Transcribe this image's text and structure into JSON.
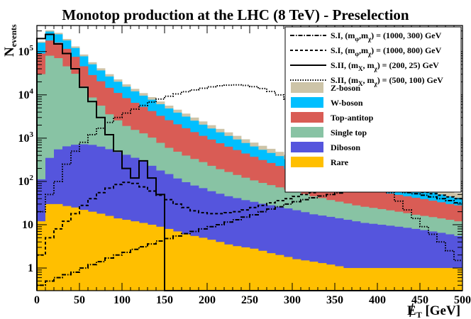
{
  "chart_data": {
    "type": "histogram-stacked-log",
    "title": "Monotop production at the LHC (8 TeV) - Preselection",
    "xlabel": "E_T [GeV]",
    "ylabel": "N_events",
    "xlim": [
      0,
      500
    ],
    "ylim": [
      0.3,
      400000
    ],
    "yscale": "log",
    "bin_width": 10,
    "x_ticks": [
      0,
      50,
      100,
      150,
      200,
      250,
      300,
      350,
      400,
      450,
      500
    ],
    "x_tick_labels": [
      "0",
      "50",
      "100",
      "150",
      "200",
      "250",
      "300",
      "350",
      "400",
      "450",
      "500"
    ],
    "y_tick_labels": [
      {
        "value": 1,
        "base": "1",
        "exp": ""
      },
      {
        "value": 10,
        "base": "10",
        "exp": ""
      },
      {
        "value": 100,
        "base": "10",
        "exp": "2"
      },
      {
        "value": 1000,
        "base": "10",
        "exp": "3"
      },
      {
        "value": 10000,
        "base": "10",
        "exp": "4"
      },
      {
        "value": 100000,
        "base": "10",
        "exp": "5"
      }
    ],
    "stacked_series": [
      {
        "name": "Rare",
        "color": "#ffbf00",
        "values": [
          12,
          30,
          30,
          27,
          25,
          22,
          20,
          18,
          16,
          14,
          13,
          12,
          11,
          10,
          9,
          8,
          7,
          6,
          5.5,
          5,
          4.5,
          4,
          3.5,
          3.2,
          3,
          2.8,
          2.5,
          2.2,
          2,
          1.8,
          1.6,
          1.5,
          1.4,
          1.3,
          1.2,
          1.1,
          1,
          1,
          1,
          1,
          1,
          1,
          1,
          1,
          1,
          1,
          1,
          1,
          1,
          1
        ]
      },
      {
        "name": "Diboson",
        "color": "#5555dd",
        "values": [
          100,
          320,
          520,
          620,
          680,
          700,
          680,
          620,
          540,
          460,
          400,
          340,
          280,
          220,
          170,
          140,
          110,
          90,
          75,
          65,
          55,
          48,
          42,
          38,
          34,
          31,
          28,
          26,
          24,
          22,
          20,
          18,
          16,
          15,
          14,
          13,
          12,
          11,
          10,
          9.5,
          9,
          8.5,
          8,
          7.5,
          7,
          6.5,
          6,
          5.5,
          5,
          4.5
        ]
      },
      {
        "name": "Single top",
        "color": "#88c3a4",
        "values": [
          30000,
          80000,
          70000,
          45000,
          30000,
          15000,
          8000,
          5000,
          3000,
          2100,
          1500,
          1200,
          1000,
          800,
          600,
          450,
          370,
          300,
          250,
          210,
          170,
          140,
          120,
          100,
          85,
          72,
          62,
          54,
          47,
          41,
          36,
          32,
          28,
          25,
          22,
          20,
          18,
          16,
          15,
          14,
          13,
          12,
          11,
          10,
          9,
          8.5,
          8,
          7.5,
          7,
          6.5
        ]
      },
      {
        "name": "Top-antitop",
        "color": "#d95c55",
        "values": [
          60000,
          100000,
          90000,
          70000,
          45000,
          30000,
          20000,
          15000,
          11000,
          8500,
          6500,
          5000,
          4000,
          3200,
          2500,
          2000,
          1600,
          1300,
          1050,
          850,
          700,
          570,
          470,
          390,
          320,
          265,
          220,
          185,
          155,
          130,
          110,
          95,
          82,
          72,
          63,
          56,
          50,
          45,
          41,
          37,
          34,
          31,
          29,
          27,
          25,
          23,
          21,
          19,
          17,
          16
        ]
      },
      {
        "name": "W-boson",
        "color": "#00bfff",
        "values": [
          70000,
          110000,
          90000,
          65000,
          45000,
          32000,
          22000,
          16000,
          12000,
          9000,
          7000,
          5500,
          4300,
          3500,
          2800,
          2250,
          1800,
          1450,
          1150,
          920,
          740,
          600,
          490,
          400,
          330,
          272,
          225,
          188,
          157,
          132,
          112,
          96,
          83,
          72,
          63,
          55,
          49,
          44,
          39,
          35,
          32,
          29,
          27,
          25,
          23,
          21,
          19,
          17,
          15,
          14
        ]
      },
      {
        "name": "Z-boson",
        "color": "#cdc4a8",
        "values": [
          10000,
          20000,
          20000,
          15000,
          11000,
          8000,
          6000,
          4500,
          3500,
          2700,
          2100,
          1700,
          1400,
          1150,
          950,
          790,
          660,
          550,
          460,
          385,
          325,
          275,
          235,
          200,
          170,
          147,
          128,
          112,
          98,
          86,
          76,
          67,
          60,
          54,
          49,
          44,
          40,
          36,
          33,
          30,
          27,
          25,
          23,
          21,
          19,
          17,
          15.5,
          14,
          13,
          12
        ]
      }
    ],
    "signal_series": [
      {
        "name": "S.I, (m_φ, m_χ) = (1000, 300) GeV",
        "legend_main": "S.I, (m",
        "legend_sub1": "φ",
        "legend_mid": ",m",
        "legend_sub2": "χ",
        "legend_end": ") = (1000, 300) GeV",
        "dash": "6,2,1.5,2",
        "values": [
          0.4,
          0.5,
          0.6,
          0.7,
          0.8,
          1,
          1.2,
          1.4,
          1.7,
          2,
          2.3,
          2.7,
          3.1,
          3.6,
          4.2,
          4.8,
          5.5,
          6.2,
          7,
          8,
          9,
          10,
          11.5,
          13,
          15,
          17,
          20,
          23,
          26,
          30,
          34,
          38,
          42,
          46,
          50,
          54,
          58,
          60,
          62,
          63,
          62,
          60,
          58,
          55,
          52,
          48,
          44,
          40,
          36,
          32
        ]
      },
      {
        "name": "S.I, (m_φ, m_χ) = (1000, 800) GeV",
        "legend_main": "S.I, (m",
        "legend_sub1": "φ",
        "legend_mid": ",m",
        "legend_sub2": "χ",
        "legend_end": ") = (1000, 800) GeV",
        "dash": "4,3",
        "values": [
          2,
          5,
          8,
          12,
          18,
          28,
          40,
          55,
          70,
          85,
          95,
          90,
          75,
          60,
          48,
          38,
          30,
          25,
          21,
          19,
          18,
          18,
          19,
          20,
          22,
          25,
          28,
          32,
          36,
          40,
          45,
          50,
          55,
          60,
          65,
          70,
          72,
          74,
          75,
          74,
          72,
          70,
          67,
          64,
          60,
          56,
          52,
          48,
          44,
          40
        ]
      },
      {
        "name": "S.II, (m_X, m_χ) = (200, 25) GeV",
        "legend_main": "S.II, (m",
        "legend_sub1": "X",
        "legend_mid": ", m",
        "legend_sub2": "χ",
        "legend_end": ") = (200, 25) GeV",
        "dash": "",
        "values": [
          200000,
          250000,
          150000,
          90000,
          40000,
          15000,
          7000,
          3000,
          1200,
          500,
          200,
          120,
          300,
          120,
          50,
          0.1,
          0.1,
          0.1,
          0.1,
          0.1,
          0.1,
          0.1,
          0.1,
          0.1,
          0.1,
          0.1,
          0.1,
          0.1,
          0.1,
          0.1,
          0.1,
          0.1,
          0.1,
          0.1,
          0.1,
          0.1,
          0.1,
          0.1,
          0.1,
          0.1,
          0.1,
          0.1,
          0.1,
          0.1,
          0.1,
          0.1,
          0.1,
          0.1,
          0.1,
          0.1
        ]
      },
      {
        "name": "S.II, (m_X, m_χ) = (500, 100) GeV",
        "legend_main": "S.II, (m",
        "legend_sub1": "X",
        "legend_mid": ", m",
        "legend_sub2": "χ",
        "legend_end": ") = (500, 100) GeV",
        "dash": "1.5,2",
        "values": [
          20,
          50,
          100,
          250,
          500,
          800,
          1200,
          1700,
          2300,
          3000,
          3800,
          4700,
          5700,
          6800,
          8000,
          9300,
          10500,
          11800,
          13000,
          14200,
          15300,
          16200,
          16800,
          17000,
          16500,
          15500,
          14000,
          12000,
          10000,
          8000,
          6000,
          4500,
          3200,
          2200,
          1500,
          1000,
          650,
          400,
          250,
          150,
          90,
          55,
          35,
          22,
          14,
          9,
          6,
          4,
          2.5,
          1.5
        ]
      }
    ]
  }
}
